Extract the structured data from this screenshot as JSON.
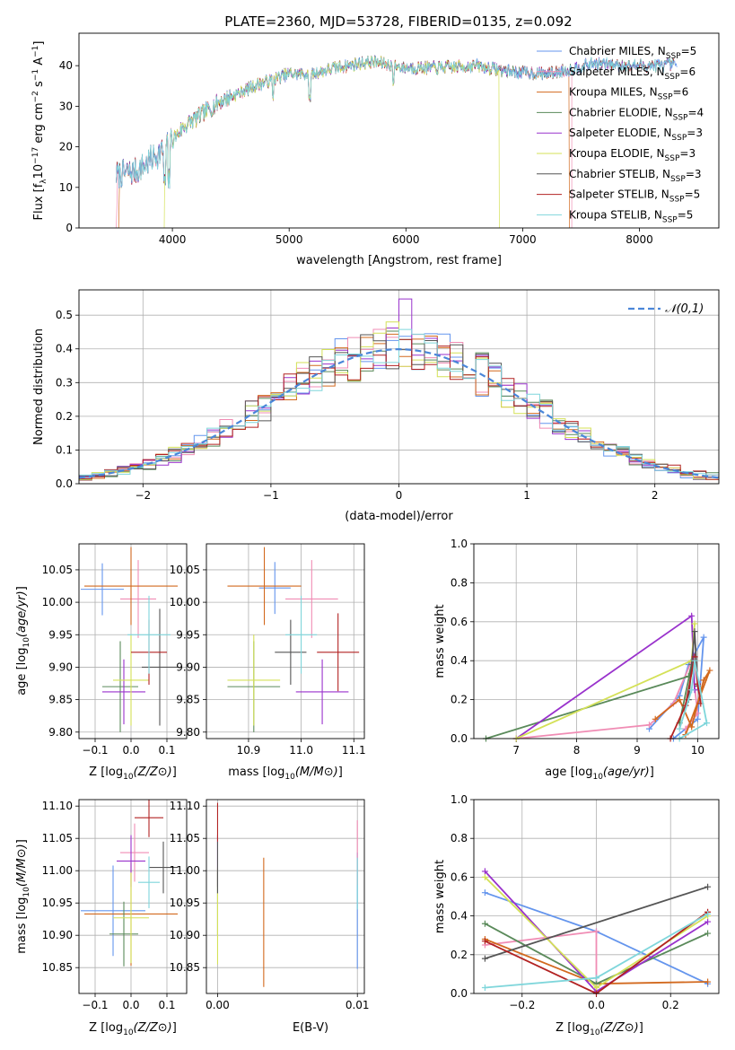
{
  "title": "PLATE=2360, MJD=53728, FIBERID=0135, z=0.092",
  "colors": [
    "#6495ED",
    "#F08CB4",
    "#D2691E",
    "#5A8A5A",
    "#9932CC",
    "#D4E157",
    "#555555",
    "#B22222",
    "#7FD6DB"
  ],
  "legend_entries": [
    {
      "pre": "Chabrier MILES, N",
      "sub": "SSP",
      "post": "=5"
    },
    {
      "pre": "Salpeter MILES, N",
      "sub": "SSP",
      "post": "=6"
    },
    {
      "pre": "Kroupa MILES, N",
      "sub": "SSP",
      "post": "=6"
    },
    {
      "pre": "Chabrier ELODIE, N",
      "sub": "SSP",
      "post": "=4"
    },
    {
      "pre": "Salpeter ELODIE, N",
      "sub": "SSP",
      "post": "=3"
    },
    {
      "pre": "Kroupa ELODIE, N",
      "sub": "SSP",
      "post": "=3"
    },
    {
      "pre": "Chabrier STELIB, N",
      "sub": "SSP",
      "post": "=3"
    },
    {
      "pre": "Salpeter STELIB, N",
      "sub": "SSP",
      "post": "=5"
    },
    {
      "pre": "Kroupa STELIB, N",
      "sub": "SSP",
      "post": "=5"
    }
  ],
  "chart_data": [
    {
      "type": "line",
      "ylabel_parts": {
        "a": "Flux [f",
        "sub1": "λ",
        "b": "10",
        "sup1": "−17",
        "c": " erg cm",
        "sup2": "−2",
        "d": " s",
        "sup3": "−1",
        "e": " A",
        "sup4": "−1",
        "f": "]"
      },
      "xlabel": "wavelength [Angstrom, rest frame]",
      "xlim": [
        3200,
        8680
      ],
      "ylim": [
        0,
        48
      ],
      "xticks": [
        4000,
        5000,
        6000,
        7000,
        8000
      ],
      "yticks": [
        0,
        10,
        20,
        30,
        40
      ],
      "continuum": [
        [
          3500,
          13
        ],
        [
          3700,
          14
        ],
        [
          3950,
          20
        ],
        [
          4100,
          25
        ],
        [
          4400,
          31
        ],
        [
          4700,
          35
        ],
        [
          5000,
          38
        ],
        [
          5200,
          38
        ],
        [
          5400,
          39.5
        ],
        [
          5700,
          41
        ],
        [
          6000,
          39.5
        ],
        [
          6300,
          39.5
        ],
        [
          6600,
          40
        ],
        [
          6900,
          38.5
        ],
        [
          7200,
          38
        ],
        [
          7400,
          39
        ],
        [
          7600,
          40.5
        ],
        [
          8000,
          40
        ],
        [
          8300,
          40.2
        ]
      ],
      "series_ranges": [
        [
          3520,
          8320
        ],
        [
          3530,
          7420
        ],
        [
          3550,
          7400
        ],
        [
          3520,
          8300
        ],
        [
          3520,
          8300
        ],
        [
          3930,
          6800
        ],
        [
          3520,
          8300
        ],
        [
          3520,
          8300
        ],
        [
          3520,
          8300
        ]
      ]
    },
    {
      "type": "bar",
      "xlabel": "(data-model)/error",
      "ylabel": "Normed distribution",
      "xlim": [
        -2.5,
        2.5
      ],
      "ylim": [
        0,
        0.575
      ],
      "xticks": [
        -2,
        -1,
        0,
        1,
        2
      ],
      "yticks": [
        0.0,
        0.1,
        0.2,
        0.3,
        0.4,
        0.5
      ],
      "legend": "𝒩(0,1)",
      "bins": {
        "start": -2.5,
        "width": 0.1,
        "count": 50
      },
      "seed_heights": [
        0.015,
        0.025,
        0.03,
        0.035,
        0.04,
        0.05,
        0.06,
        0.075,
        0.095,
        0.11,
        0.12,
        0.13,
        0.145,
        0.17,
        0.19,
        0.21,
        0.23,
        0.25,
        0.27,
        0.29,
        0.31,
        0.33,
        0.35,
        0.37,
        0.385,
        0.39,
        0.4,
        0.405,
        0.41,
        0.42
      ]
    },
    {
      "type": "scatter",
      "xlabel": "Z [log10(Z/Z⊙)]",
      "ylabel": "age [log10(age/yr)]",
      "xlim": [
        -0.145,
        0.155
      ],
      "ylim": [
        9.79,
        10.09
      ],
      "xticks": [
        -0.1,
        0.0,
        0.1
      ],
      "yticks": [
        9.8,
        9.85,
        9.9,
        9.95,
        10.0,
        10.05
      ],
      "points": [
        {
          "x": -0.08,
          "xerr": 0.06,
          "y": 10.02,
          "yerr": 0.04
        },
        {
          "x": 0.02,
          "xerr": 0.05,
          "y": 10.005,
          "yerr": 0.06
        },
        {
          "x": 0.0,
          "xerr": 0.13,
          "y": 10.025,
          "yerr": 0.06
        },
        {
          "x": -0.03,
          "xerr": 0.05,
          "y": 9.87,
          "yerr": 0.07
        },
        {
          "x": -0.02,
          "xerr": 0.06,
          "y": 9.862,
          "yerr": 0.05
        },
        {
          "x": 0.0,
          "xerr": 0.05,
          "y": 9.88,
          "yerr": 0.07
        },
        {
          "x": 0.08,
          "xerr": 0.05,
          "y": 9.9,
          "yerr": 0.09
        },
        {
          "x": 0.05,
          "xerr": 0.05,
          "y": 9.923,
          "yerr": 0.05
        },
        {
          "x": 0.05,
          "xerr": 0.06,
          "y": 9.95,
          "yerr": 0.06
        }
      ]
    },
    {
      "type": "scatter",
      "xlabel": "mass [log10(M/M⊙)]",
      "ylabel": "",
      "xlim": [
        10.82,
        11.12
      ],
      "ylim": [
        9.79,
        10.09
      ],
      "xticks": [
        10.9,
        11.0,
        11.1
      ],
      "yticks": [
        9.8,
        9.85,
        9.9,
        9.95,
        10.0,
        10.05
      ],
      "points": [
        {
          "x": 10.95,
          "xerr": 0.03,
          "y": 10.022,
          "yerr": 0.04
        },
        {
          "x": 11.02,
          "xerr": 0.05,
          "y": 10.005,
          "yerr": 0.06
        },
        {
          "x": 10.93,
          "xerr": 0.07,
          "y": 10.025,
          "yerr": 0.06
        },
        {
          "x": 10.91,
          "xerr": 0.05,
          "y": 9.87,
          "yerr": 0.07
        },
        {
          "x": 11.04,
          "xerr": 0.05,
          "y": 9.862,
          "yerr": 0.05
        },
        {
          "x": 10.91,
          "xerr": 0.05,
          "y": 9.88,
          "yerr": 0.07
        },
        {
          "x": 10.98,
          "xerr": 0.03,
          "y": 9.923,
          "yerr": 0.05
        },
        {
          "x": 11.07,
          "xerr": 0.04,
          "y": 9.923,
          "yerr": 0.06
        },
        {
          "x": 11.0,
          "xerr": 0.03,
          "y": 9.95,
          "yerr": 0.06
        }
      ]
    },
    {
      "type": "line",
      "xlabel": "age [log10(age/yr)]",
      "ylabel": "mass weight",
      "xlim": [
        6.3,
        10.35
      ],
      "ylim": [
        0,
        1.0
      ],
      "xticks": [
        7,
        8,
        9,
        10
      ],
      "yticks": [
        0.0,
        0.2,
        0.4,
        0.6,
        0.8,
        1.0
      ],
      "series": [
        {
          "points": [
            [
              9.2,
              0.05
            ],
            [
              9.7,
              0.22
            ],
            [
              9.85,
              0.38
            ],
            [
              10.1,
              0.52
            ],
            [
              10.0,
              0.1
            ],
            [
              9.6,
              0.0
            ]
          ]
        },
        {
          "points": [
            [
              7.0,
              0.0
            ],
            [
              9.2,
              0.07
            ],
            [
              9.6,
              0.18
            ],
            [
              9.9,
              0.4
            ],
            [
              10.0,
              0.13
            ],
            [
              9.8,
              0.05
            ]
          ]
        },
        {
          "points": [
            [
              9.3,
              0.1
            ],
            [
              9.7,
              0.2
            ],
            [
              9.9,
              0.06
            ],
            [
              10.1,
              0.3
            ],
            [
              10.2,
              0.35
            ],
            [
              9.8,
              0.02
            ]
          ]
        },
        {
          "points": [
            [
              6.5,
              0.0
            ],
            [
              9.85,
              0.32
            ],
            [
              9.9,
              0.38
            ],
            [
              9.7,
              0.08
            ]
          ]
        },
        {
          "points": [
            [
              7.0,
              0.0
            ],
            [
              9.9,
              0.63
            ],
            [
              9.95,
              0.25
            ]
          ]
        },
        {
          "points": [
            [
              7.0,
              0.0
            ],
            [
              9.9,
              0.4
            ],
            [
              9.95,
              0.59
            ]
          ]
        },
        {
          "points": [
            [
              9.85,
              0.2
            ],
            [
              9.95,
              0.55
            ],
            [
              10.0,
              0.27
            ]
          ]
        },
        {
          "points": [
            [
              9.55,
              0.0
            ],
            [
              9.8,
              0.17
            ],
            [
              9.95,
              0.42
            ],
            [
              10.0,
              0.28
            ],
            [
              10.05,
              0.18
            ]
          ]
        },
        {
          "points": [
            [
              9.7,
              0.05
            ],
            [
              9.9,
              0.25
            ],
            [
              9.95,
              0.4
            ],
            [
              10.15,
              0.08
            ],
            [
              9.7,
              0.0
            ]
          ]
        }
      ]
    },
    {
      "type": "scatter",
      "xlabel": "Z [log10(Z/Z⊙)]",
      "ylabel": "mass [log10(M/M⊙)]",
      "xlim": [
        -0.145,
        0.155
      ],
      "ylim": [
        10.81,
        11.11
      ],
      "xticks": [
        -0.1,
        0.0,
        0.1
      ],
      "yticks": [
        10.85,
        10.9,
        10.95,
        11.0,
        11.05,
        11.1
      ],
      "points": [
        {
          "x": -0.05,
          "xerr": 0.09,
          "y": 10.938,
          "yerr": 0.07
        },
        {
          "x": 0.01,
          "xerr": 0.04,
          "y": 11.028,
          "yerr": 0.045
        },
        {
          "x": 0.0,
          "xerr": 0.13,
          "y": 10.933,
          "yerr": 0.08
        },
        {
          "x": -0.02,
          "xerr": 0.04,
          "y": 10.902,
          "yerr": 0.05
        },
        {
          "x": 0.0,
          "xerr": 0.04,
          "y": 11.015,
          "yerr": 0.04
        },
        {
          "x": 0.0,
          "xerr": 0.05,
          "y": 10.927,
          "yerr": 0.07
        },
        {
          "x": 0.09,
          "xerr": 0.04,
          "y": 11.005,
          "yerr": 0.04
        },
        {
          "x": 0.05,
          "xerr": 0.04,
          "y": 11.082,
          "yerr": 0.03
        },
        {
          "x": 0.05,
          "xerr": 0.03,
          "y": 10.982,
          "yerr": 0.04
        }
      ]
    },
    {
      "type": "scatter",
      "xlabel": "E(B-V)",
      "ylabel": "",
      "xlim": [
        -0.0008,
        0.0105
      ],
      "ylim": [
        10.81,
        11.11
      ],
      "xticks": [
        0.0,
        0.01
      ],
      "yticks": [
        10.85,
        10.9,
        10.95,
        11.0,
        11.05,
        11.1
      ],
      "points": [
        {
          "x": 0.01,
          "xerr": 0,
          "y": 10.938,
          "yerr": 0.09
        },
        {
          "x": 0.01,
          "xerr": 0,
          "y": 11.028,
          "yerr": 0.05
        },
        {
          "x": 0.0033,
          "xerr": 0,
          "y": 10.92,
          "yerr": 0.1
        },
        {
          "x": 0.0,
          "xerr": 0,
          "y": 10.95,
          "yerr": 0.05
        },
        {
          "x": 0.0,
          "xerr": 0,
          "y": 11.015,
          "yerr": 0.04
        },
        {
          "x": 0.0,
          "xerr": 0,
          "y": 10.93,
          "yerr": 0.075
        },
        {
          "x": 0.0,
          "xerr": 0,
          "y": 11.005,
          "yerr": 0.04
        },
        {
          "x": 0.0,
          "xerr": 0,
          "y": 11.075,
          "yerr": 0.03
        },
        {
          "x": 0.01,
          "xerr": 0,
          "y": 10.98,
          "yerr": 0.04
        }
      ]
    },
    {
      "type": "line",
      "xlabel": "Z [log10(Z/Z⊙)]",
      "ylabel": "mass weight",
      "xlim": [
        -0.33,
        0.33
      ],
      "ylim": [
        0,
        1.0
      ],
      "xticks": [
        -0.2,
        0.0,
        0.2
      ],
      "yticks": [
        0.0,
        0.2,
        0.4,
        0.6,
        0.8,
        1.0
      ],
      "series": [
        {
          "points": [
            [
              -0.3,
              0.52
            ],
            [
              0.0,
              0.32
            ],
            [
              0.3,
              0.05
            ]
          ]
        },
        {
          "points": [
            [
              -0.3,
              0.25
            ],
            [
              0.0,
              0.32
            ],
            [
              0.0,
              0.01
            ]
          ]
        },
        {
          "points": [
            [
              -0.3,
              0.28
            ],
            [
              0.0,
              0.05
            ],
            [
              0.3,
              0.06
            ]
          ]
        },
        {
          "points": [
            [
              -0.3,
              0.36
            ],
            [
              0.0,
              0.05
            ],
            [
              0.3,
              0.31
            ]
          ]
        },
        {
          "points": [
            [
              -0.3,
              0.63
            ],
            [
              0.0,
              0.01
            ],
            [
              0.3,
              0.37
            ]
          ]
        },
        {
          "points": [
            [
              -0.3,
              0.6
            ],
            [
              0.0,
              0.03
            ],
            [
              0.3,
              0.4
            ]
          ]
        },
        {
          "points": [
            [
              -0.3,
              0.18
            ],
            [
              0.3,
              0.55
            ]
          ]
        },
        {
          "points": [
            [
              -0.3,
              0.27
            ],
            [
              0.0,
              0.0
            ],
            [
              0.3,
              0.42
            ]
          ]
        },
        {
          "points": [
            [
              -0.3,
              0.03
            ],
            [
              0.0,
              0.08
            ],
            [
              0.3,
              0.41
            ]
          ]
        }
      ]
    }
  ]
}
